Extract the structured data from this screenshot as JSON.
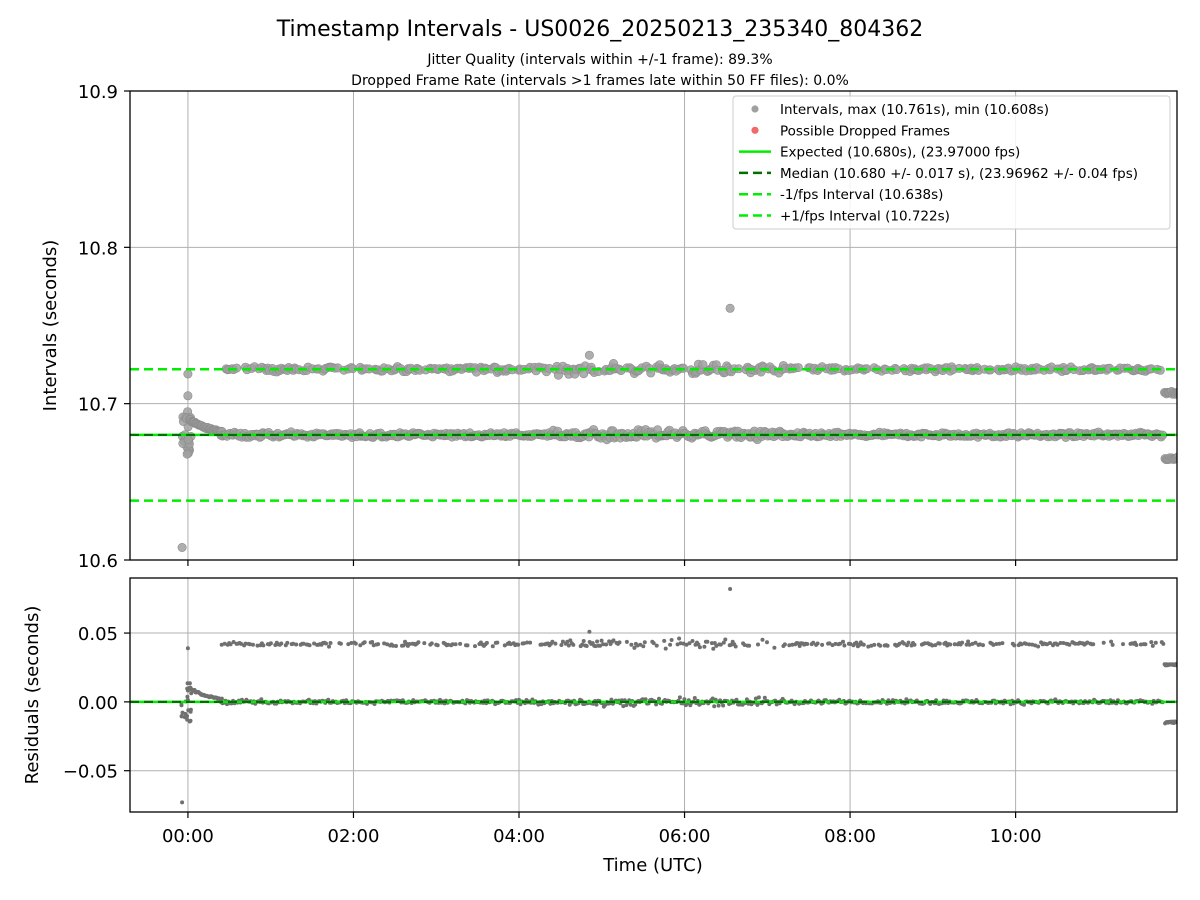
{
  "figure": {
    "title": "Timestamp Intervals - US0026_20250213_235340_804362",
    "subtitle_1": "Jitter Quality (intervals within +/-1 frame): 89.3%",
    "subtitle_2": "Dropped Frame Rate (intervals >1 frames late within 50 FF files): 0.0%",
    "xlabel": "Time (UTC)"
  },
  "chart_data": [
    {
      "type": "scatter",
      "name": "intervals",
      "ylabel": "Intervals (seconds)",
      "ylim": [
        10.6,
        10.9
      ],
      "xlim": [
        -0.7,
        11.95
      ],
      "x_unit": "hours since 00:00 UTC",
      "grid": true,
      "yticks": [
        {
          "value": 10.6,
          "label": "10.6"
        },
        {
          "value": 10.7,
          "label": "10.7"
        },
        {
          "value": 10.8,
          "label": "10.8"
        },
        {
          "value": 10.9,
          "label": "10.9"
        }
      ],
      "xticks": [
        {
          "value": 0,
          "label": "00:00"
        },
        {
          "value": 2,
          "label": "02:00"
        },
        {
          "value": 4,
          "label": "04:00"
        },
        {
          "value": 6,
          "label": "06:00"
        },
        {
          "value": 8,
          "label": "08:00"
        },
        {
          "value": 10,
          "label": "10:00"
        }
      ],
      "legend_position": "top-right",
      "legend": [
        {
          "label": "Intervals, max (10.761s), min (10.608s)",
          "marker": "dot",
          "color": "#a0a0a0"
        },
        {
          "label": "Possible Dropped Frames",
          "marker": "dot",
          "color": "#f06a6a"
        },
        {
          "label": "Expected (10.680s), (23.97000 fps)",
          "marker": "line",
          "color": "#00ee00"
        },
        {
          "label": "Median (10.680 +/- 0.017 s), (23.96962 +/- 0.04 fps)",
          "marker": "dash",
          "color": "#007000"
        },
        {
          "label": "-1/fps Interval (10.638s)",
          "marker": "dash",
          "color": "#00ee00"
        },
        {
          "label": "+1/fps Interval (10.722s)",
          "marker": "dash",
          "color": "#00ee00"
        }
      ],
      "lines": {
        "expected": 10.68,
        "median": 10.68,
        "minus_one_fps": 10.638,
        "plus_one_fps": 10.722
      },
      "summary": {
        "max": 10.761,
        "min": 10.608,
        "bands": [
          10.68,
          10.722
        ]
      },
      "outliers": [
        {
          "x": -0.07,
          "y": 10.608
        },
        {
          "x": 6.55,
          "y": 10.761
        },
        {
          "x": 4.85,
          "y": 10.731
        },
        {
          "x": 0.0,
          "y": 10.719
        },
        {
          "x": 0.0,
          "y": 10.705
        }
      ],
      "end_segment": {
        "x_start": 11.8,
        "upper": 10.707,
        "lower": 10.665
      },
      "point_color": "#a0a0a0"
    },
    {
      "type": "scatter",
      "name": "residuals",
      "ylabel": "Residuals (seconds)",
      "ylim": [
        -0.08,
        0.09
      ],
      "xlim": [
        -0.7,
        11.95
      ],
      "x_unit": "hours since 00:00 UTC",
      "grid": true,
      "yticks": [
        {
          "value": -0.05,
          "label": "−0.05"
        },
        {
          "value": 0.0,
          "label": "0.00"
        },
        {
          "value": 0.05,
          "label": "0.05"
        }
      ],
      "xticks": [
        {
          "value": 0,
          "label": "00:00"
        },
        {
          "value": 2,
          "label": "02:00"
        },
        {
          "value": 4,
          "label": "04:00"
        },
        {
          "value": 6,
          "label": "06:00"
        },
        {
          "value": 8,
          "label": "08:00"
        },
        {
          "value": 10,
          "label": "10:00"
        }
      ],
      "lines": {
        "expected": 0.0,
        "median": 0.0
      },
      "outliers": [
        {
          "x": -0.07,
          "y": -0.073
        },
        {
          "x": 6.55,
          "y": 0.082
        },
        {
          "x": 4.85,
          "y": 0.051
        },
        {
          "x": 0.0,
          "y": 0.039
        }
      ],
      "bands": [
        0.0,
        0.042
      ],
      "end_segment": {
        "x_start": 11.8,
        "upper": 0.027,
        "lower": -0.015
      },
      "point_color": "#707070"
    }
  ],
  "colors": {
    "expected": "#00ee00",
    "median": "#007000",
    "grid": "#b0b0b0",
    "axes": "#000000"
  }
}
